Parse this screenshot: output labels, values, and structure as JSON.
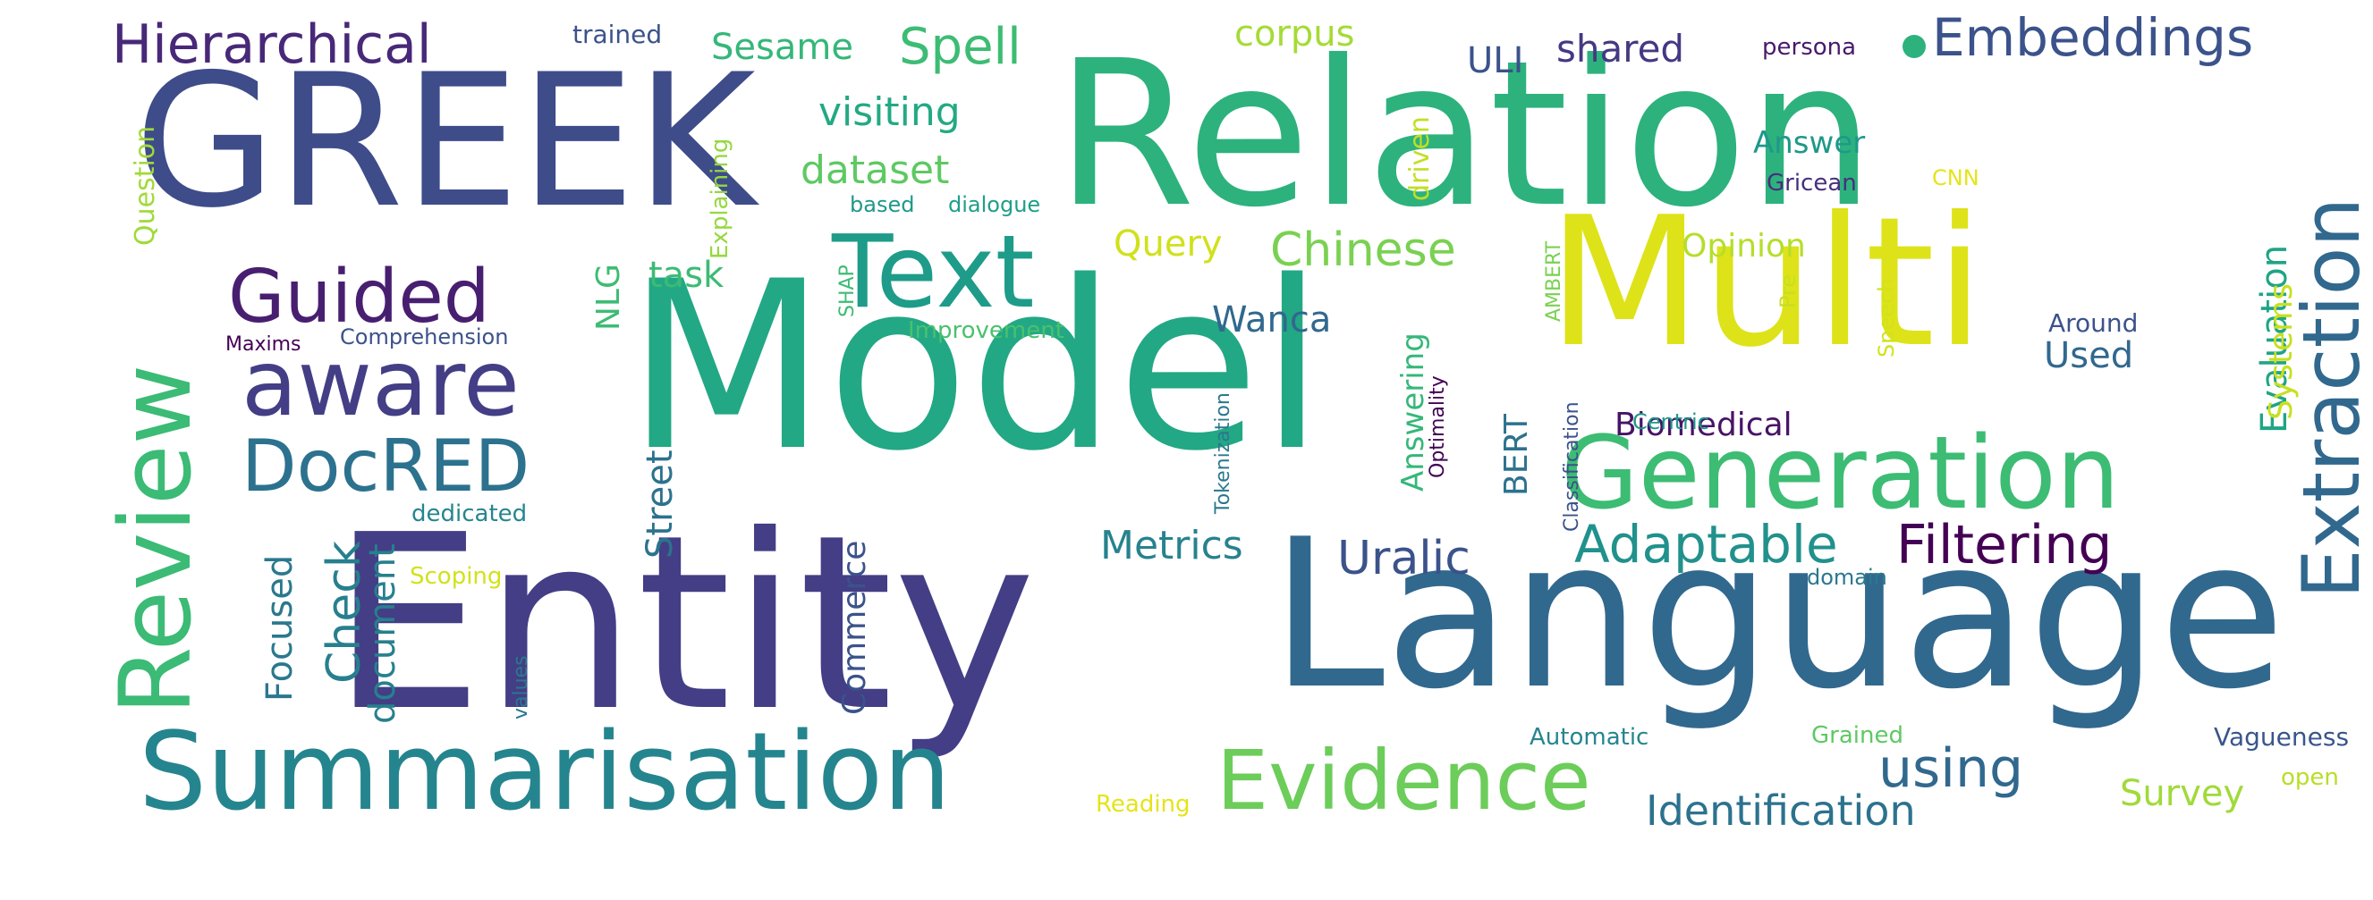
{
  "words": [
    {
      "text": "Model",
      "color": "#22a884",
      "vertical": false
    },
    {
      "text": "Entity",
      "color": "#433e85",
      "vertical": false
    },
    {
      "text": "Relation",
      "color": "#2db27d",
      "vertical": false
    },
    {
      "text": "Language",
      "color": "#31688e",
      "vertical": false
    },
    {
      "text": "GREEK",
      "color": "#3e4c8a",
      "vertical": false
    },
    {
      "text": "Multi",
      "color": "#dde318",
      "vertical": false
    },
    {
      "text": "Summarisation",
      "color": "#25858e",
      "vertical": false
    },
    {
      "text": "Generation",
      "color": "#3dbc74",
      "vertical": false
    },
    {
      "text": "Text",
      "color": "#1e9c89",
      "vertical": false
    },
    {
      "text": "Review",
      "color": "#3bbb75",
      "vertical": true
    },
    {
      "text": "Extraction",
      "color": "#31688e",
      "vertical": true
    },
    {
      "text": "aware",
      "color": "#433e85",
      "vertical": false
    },
    {
      "text": "Evidence",
      "color": "#6ccd5a",
      "vertical": false
    },
    {
      "text": "Guided",
      "color": "#481f70",
      "vertical": false
    },
    {
      "text": "DocRED",
      "color": "#2c728e",
      "vertical": false
    },
    {
      "text": "Hierarchical",
      "color": "#482878",
      "vertical": false
    },
    {
      "text": "Embeddings",
      "color": "#3b528b",
      "vertical": false
    },
    {
      "text": "Filtering",
      "color": "#440154",
      "vertical": false
    },
    {
      "text": "Adaptable",
      "color": "#21918c",
      "vertical": false
    },
    {
      "text": "Chinese",
      "color": "#7ad151",
      "vertical": false
    },
    {
      "text": "Spell",
      "color": "#3dbc74",
      "vertical": false
    },
    {
      "text": "using",
      "color": "#31688e",
      "vertical": false
    },
    {
      "text": "Identification",
      "color": "#2c728e",
      "vertical": false
    },
    {
      "text": "Uralic",
      "color": "#3b528b",
      "vertical": false
    },
    {
      "text": "Metrics",
      "color": "#26828e",
      "vertical": false
    },
    {
      "text": "visiting",
      "color": "#23a983",
      "vertical": false
    },
    {
      "text": "dataset",
      "color": "#5ec962",
      "vertical": false
    },
    {
      "text": "Check",
      "color": "#277f8e",
      "vertical": true
    },
    {
      "text": "Sesame",
      "color": "#35b779",
      "vertical": false
    },
    {
      "text": "shared",
      "color": "#443983",
      "vertical": false
    },
    {
      "text": "corpus",
      "color": "#a5db36",
      "vertical": false
    },
    {
      "text": "Wanca",
      "color": "#31688e",
      "vertical": false
    },
    {
      "text": "Used",
      "color": "#31688e",
      "vertical": false
    },
    {
      "text": "Survey",
      "color": "#a0da39",
      "vertical": false
    },
    {
      "text": "Query",
      "color": "#d0e11c",
      "vertical": false
    },
    {
      "text": "Opinion",
      "color": "#b5de2b",
      "vertical": false
    },
    {
      "text": "Answer",
      "color": "#1f988b",
      "vertical": false
    },
    {
      "text": "Evaluation",
      "color": "#20a486",
      "vertical": true
    },
    {
      "text": "Systems",
      "color": "#c8e020",
      "vertical": true
    },
    {
      "text": "Biomedical",
      "color": "#481467",
      "vertical": false
    },
    {
      "text": "Street",
      "color": "#2c728e",
      "vertical": true
    },
    {
      "text": "document",
      "color": "#27808e",
      "vertical": true
    },
    {
      "text": "Focused",
      "color": "#2a788e",
      "vertical": true
    },
    {
      "text": "Commerce",
      "color": "#3b528b",
      "vertical": true
    },
    {
      "text": "Answering",
      "color": "#35b779",
      "vertical": true
    },
    {
      "text": "BERT",
      "color": "#2c728e",
      "vertical": true
    },
    {
      "text": "NLG",
      "color": "#3dbc74",
      "vertical": true
    },
    {
      "text": "task",
      "color": "#3bbb75",
      "vertical": false
    },
    {
      "text": "ULI",
      "color": "#3b528b",
      "vertical": false
    },
    {
      "text": "Question",
      "color": "#a0da39",
      "vertical": true
    },
    {
      "text": "driven",
      "color": "#c2df23",
      "vertical": true
    },
    {
      "text": "trained",
      "color": "#3b528b",
      "vertical": false
    },
    {
      "text": "persona",
      "color": "#481a6c",
      "vertical": false
    },
    {
      "text": "Explaining",
      "color": "#95d840",
      "vertical": true
    },
    {
      "text": "based",
      "color": "#1f988b",
      "vertical": false
    },
    {
      "text": "dialogue",
      "color": "#1f9e89",
      "vertical": false
    },
    {
      "text": "Gricean",
      "color": "#472f7d",
      "vertical": false
    },
    {
      "text": "CNN",
      "color": "#e5e419",
      "vertical": false
    },
    {
      "text": "Pre",
      "color": "#c8e020",
      "vertical": true
    },
    {
      "text": "Around",
      "color": "#3b528b",
      "vertical": false
    },
    {
      "text": "Speech",
      "color": "#d2e21b",
      "vertical": true
    },
    {
      "text": "AMBERT",
      "color": "#7ad151",
      "vertical": true
    },
    {
      "text": "SHAP",
      "color": "#3dbc74",
      "vertical": true
    },
    {
      "text": "Improvement",
      "color": "#4ac16d",
      "vertical": false
    },
    {
      "text": "Maxims",
      "color": "#440154",
      "vertical": false
    },
    {
      "text": "Comprehension",
      "color": "#3b528b",
      "vertical": false
    },
    {
      "text": "Tokenization",
      "color": "#2a788e",
      "vertical": true
    },
    {
      "text": "Optimality",
      "color": "#440154",
      "vertical": true
    },
    {
      "text": "Classification",
      "color": "#3b528b",
      "vertical": true
    },
    {
      "text": "Centric",
      "color": "#1f988b",
      "vertical": false
    },
    {
      "text": "dedicated",
      "color": "#25858e",
      "vertical": false
    },
    {
      "text": "Scoping",
      "color": "#d2e21b",
      "vertical": false
    },
    {
      "text": "values",
      "color": "#2a788e",
      "vertical": true
    },
    {
      "text": "domain",
      "color": "#2a788e",
      "vertical": false
    },
    {
      "text": "Automatic",
      "color": "#25858e",
      "vertical": false
    },
    {
      "text": "Grained",
      "color": "#5ec962",
      "vertical": false
    },
    {
      "text": "Vagueness",
      "color": "#39568c",
      "vertical": false
    },
    {
      "text": "open",
      "color": "#b8de29",
      "vertical": false
    },
    {
      "text": "Reading",
      "color": "#e5e419",
      "vertical": false
    }
  ]
}
